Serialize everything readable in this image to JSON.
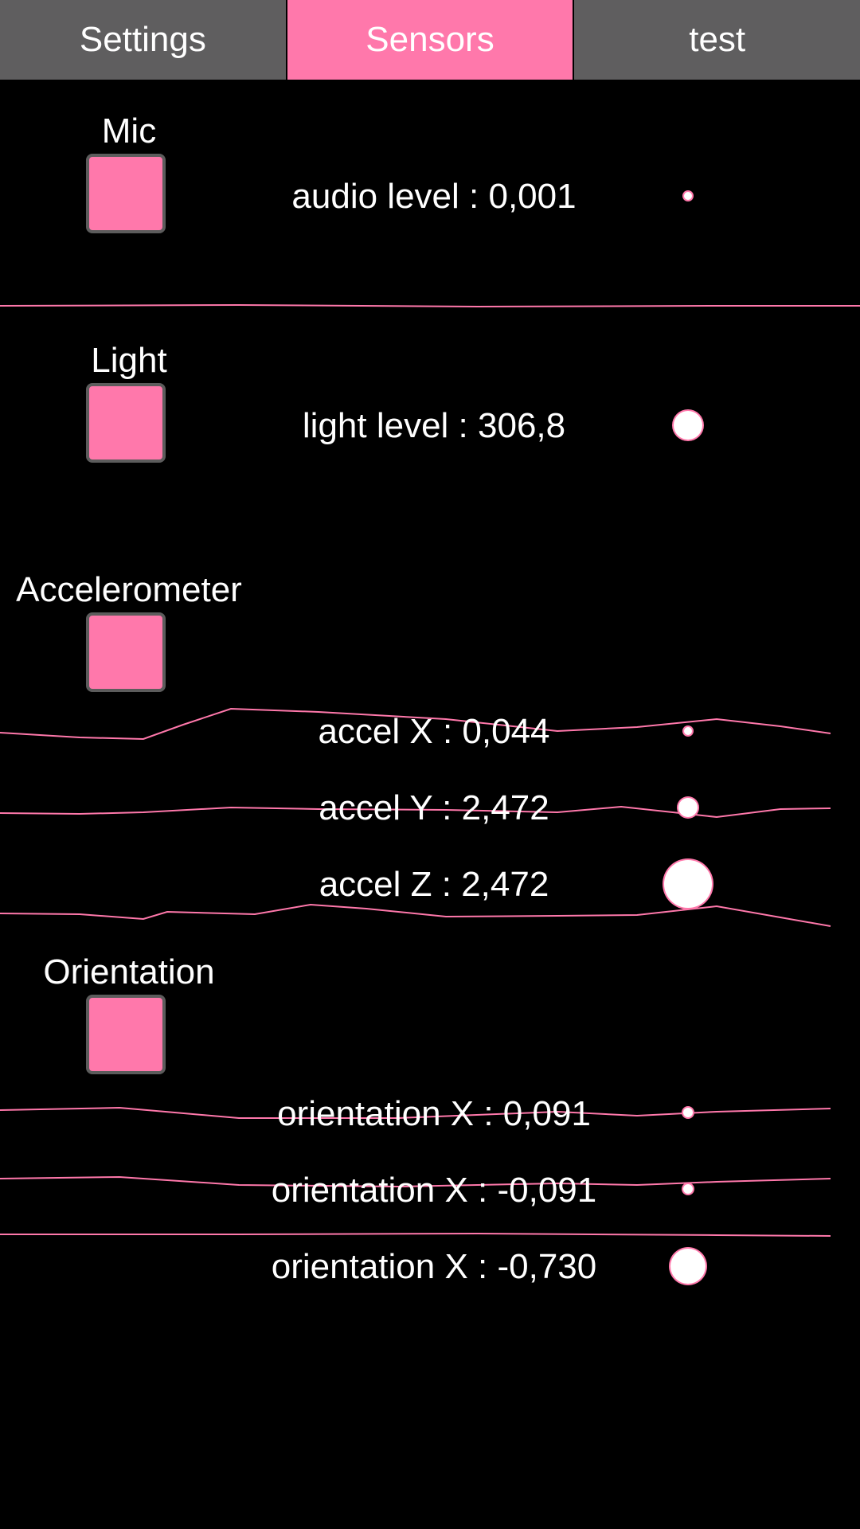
{
  "tabs": [
    "Settings",
    "Sensors",
    "test"
  ],
  "active_tab": "Sensors",
  "colors": {
    "accent": "#ff78ab",
    "tab_bg": "#5f5e5f",
    "background": "#000000"
  },
  "sections": {
    "mic": {
      "title": "Mic",
      "readings": [
        "audio level : 0,001"
      ]
    },
    "light": {
      "title": "Light",
      "readings": [
        "light level : 306,8"
      ]
    },
    "accelerometer": {
      "title": "Accelerometer",
      "readings": [
        "accel X : 0,044",
        "accel Y : 2,472",
        "accel Z : 2,472"
      ]
    },
    "orientation": {
      "title": "Orientation",
      "readings": [
        "orientation X : 0,091",
        "orientation X : -0,091",
        "orientation X : -0,730"
      ]
    }
  }
}
